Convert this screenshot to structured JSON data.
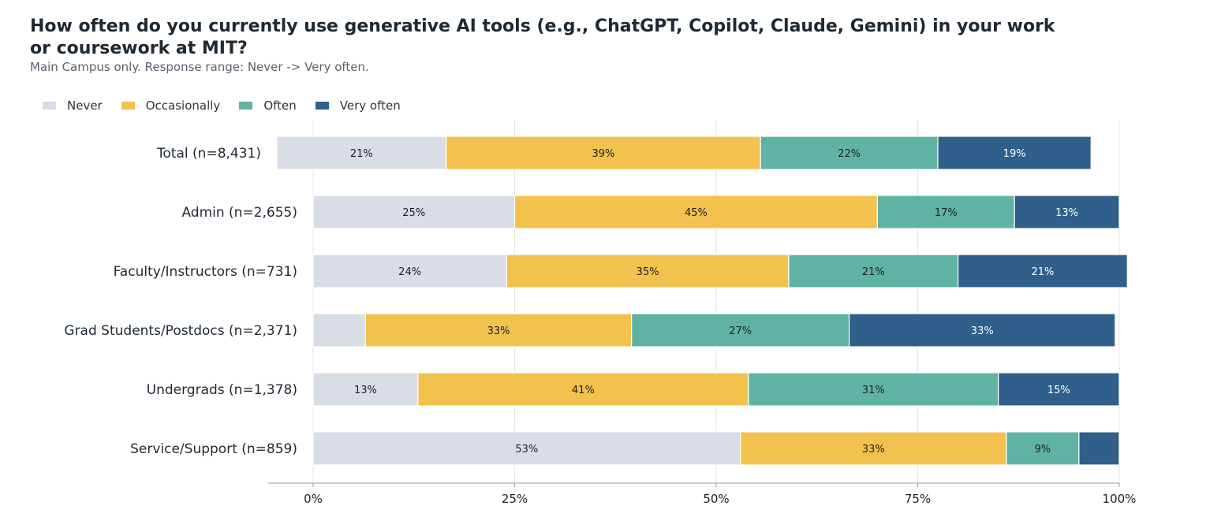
{
  "title": "How often do you currently use generative AI tools (e.g., ChatGPT, Copilot, Claude, Gemini) in your work or coursework at MIT?",
  "subtitle": "Main Campus only. Response range: Never -> Very often.",
  "colors": {
    "Never": "#d8dde6",
    "Occasionally": "#f2c14e",
    "Often": "#5fb3a3",
    "Very often": "#2f5f8a",
    "grid": "#e6e6e6",
    "axis": "#bbbbbb"
  },
  "chart_data": {
    "type": "bar",
    "orientation": "horizontal",
    "stacked": true,
    "categories": [
      "Total (n=8,431)",
      "Admin (n=2,655)",
      "Faculty/Instructors (n=731)",
      "Grad Students/Postdocs (n=2,371)",
      "Undergrads (n=1,378)",
      "Service/Support (n=859)"
    ],
    "series": [
      {
        "name": "Never",
        "values": [
          21,
          25,
          24,
          6.5,
          13,
          53
        ],
        "labels": [
          "21%",
          "25%",
          "24%",
          "",
          "13%",
          "53%"
        ]
      },
      {
        "name": "Occasionally",
        "values": [
          39,
          45,
          35,
          33,
          41,
          33
        ],
        "labels": [
          "39%",
          "45%",
          "35%",
          "33%",
          "41%",
          "33%"
        ]
      },
      {
        "name": "Often",
        "values": [
          22,
          17,
          21,
          27,
          31,
          9
        ],
        "labels": [
          "22%",
          "17%",
          "21%",
          "27%",
          "31%",
          "9%"
        ]
      },
      {
        "name": "Very often",
        "values": [
          19,
          13,
          21,
          33,
          15,
          5
        ],
        "labels": [
          "19%",
          "13%",
          "21%",
          "33%",
          "15%",
          ""
        ]
      }
    ],
    "offsets": [
      -4.5,
      0,
      0,
      0,
      0,
      0
    ],
    "xlim": [
      0,
      100
    ],
    "xticks": [
      "0%",
      "25%",
      "50%",
      "75%",
      "100%"
    ],
    "grid": true,
    "legend_position": "top-left"
  }
}
